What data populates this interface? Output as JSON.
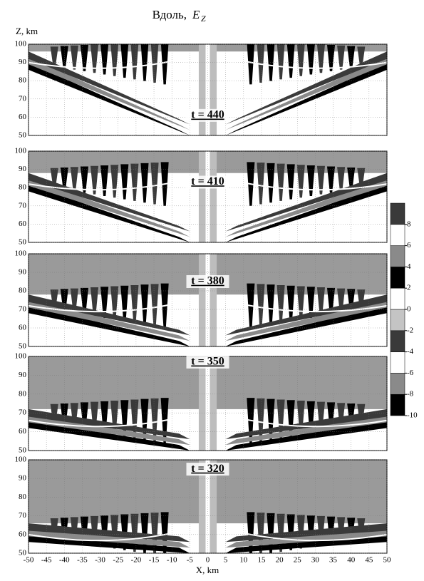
{
  "title": "Вдоль,",
  "title_var": "E",
  "title_sub": "Z",
  "y_label": "Z,  km",
  "x_label": "X,  km",
  "xlim": [
    -50,
    50
  ],
  "xticks": [
    -50,
    -45,
    -40,
    -35,
    -30,
    -25,
    -20,
    -15,
    -10,
    -5,
    0,
    5,
    10,
    15,
    20,
    25,
    30,
    35,
    40,
    45,
    50
  ],
  "chart_data": [
    {
      "type": "contour",
      "label": "t = 440",
      "ylim": [
        50,
        100
      ],
      "yticks": [
        50,
        60,
        70,
        80,
        90,
        100
      ]
    },
    {
      "type": "contour",
      "label": "t = 410",
      "ylim": [
        50,
        100
      ],
      "yticks": [
        50,
        60,
        70,
        80,
        90,
        100
      ]
    },
    {
      "type": "contour",
      "label": "t = 380",
      "ylim": [
        50,
        100
      ],
      "yticks": [
        50,
        60,
        70,
        80,
        90,
        100
      ]
    },
    {
      "type": "contour",
      "label": "t = 350",
      "ylim": [
        50,
        100
      ],
      "yticks": [
        50,
        60,
        70,
        80,
        90,
        100
      ]
    },
    {
      "type": "contour",
      "label": "t = 320",
      "ylim": [
        50,
        100
      ],
      "yticks": [
        50,
        60,
        70,
        80,
        90,
        100
      ]
    }
  ],
  "colorbar": {
    "lim": [
      -10,
      10
    ],
    "ticks": [
      -10,
      -8,
      -6,
      -4,
      -2,
      0,
      2,
      4,
      6,
      8
    ],
    "colors": [
      "#000000",
      "#8a8a8a",
      "#ffffff",
      "#3a3a3a",
      "#c4c4c4",
      "#ffffff",
      "#000000",
      "#8a8a8a",
      "#ffffff",
      "#3a3a3a"
    ]
  }
}
